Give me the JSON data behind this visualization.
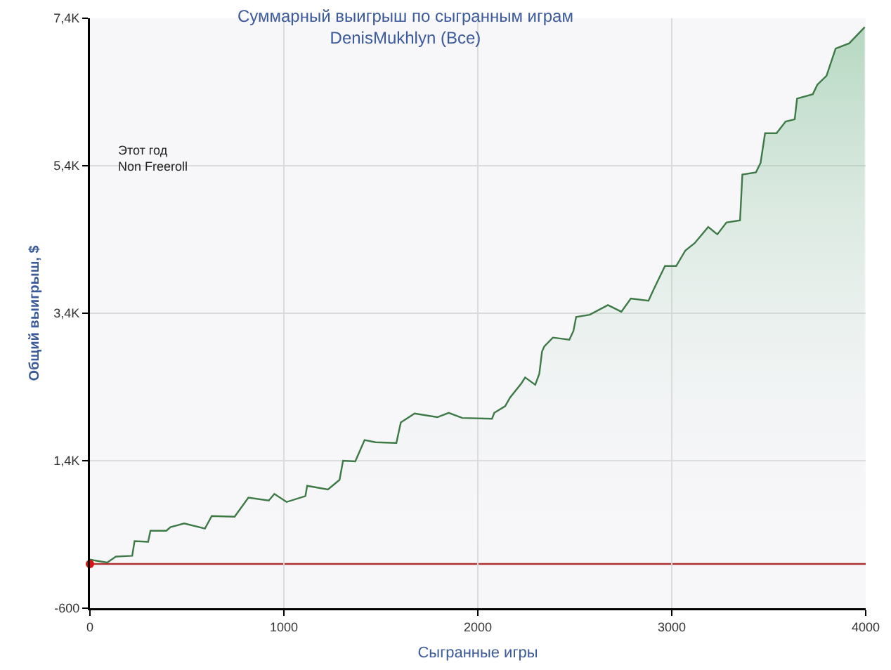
{
  "chart_data": {
    "type": "area",
    "title": "Суммарный выигрыш по сыгранным играм\nDenisMukhlyn (Все)",
    "xlabel": "Сыгранные игры",
    "ylabel": "Общий выигрыш, $",
    "annotations": [
      "Этот год\nNon Freeroll"
    ],
    "xlim": [
      0,
      4000
    ],
    "xticks": [
      0,
      1000,
      2000,
      3000,
      4000
    ],
    "ylim": [
      -600,
      7400
    ],
    "yticks": [
      -600,
      {
        "value": 1400,
        "label": "1,4K"
      },
      {
        "value": 3400,
        "label": "3,4K"
      },
      {
        "value": 5400,
        "label": "5,4K"
      },
      {
        "value": 7400,
        "label": "7,4K"
      }
    ],
    "grid": true,
    "ref_lines": [
      {
        "axis": "y",
        "value": 0,
        "color": "#b03030"
      }
    ],
    "series": [
      {
        "color": "#3d7a45",
        "x": [
          0,
          19,
          89,
          134,
          218,
          230,
          300,
          312,
          394,
          415,
          486,
          593,
          628,
          746,
          817,
          922,
          951,
          1014,
          1111,
          1120,
          1227,
          1287,
          1305,
          1368,
          1416,
          1473,
          1580,
          1603,
          1674,
          1791,
          1850,
          1920,
          2073,
          2085,
          2141,
          2167,
          2225,
          2244,
          2296,
          2317,
          2331,
          2343,
          2387,
          2472,
          2493,
          2507,
          2577,
          2671,
          2740,
          2789,
          2880,
          2906,
          2965,
          3023,
          3070,
          3118,
          3188,
          3235,
          3282,
          3352,
          3364,
          3434,
          3458,
          3481,
          3540,
          3587,
          3634,
          3646,
          3727,
          3751,
          3798,
          3845,
          3915,
          3995
        ],
        "values": [
          60,
          50,
          20,
          100,
          110,
          310,
          300,
          450,
          450,
          500,
          550,
          480,
          650,
          640,
          900,
          860,
          950,
          840,
          920,
          1060,
          1010,
          1140,
          1400,
          1390,
          1680,
          1650,
          1640,
          1920,
          2040,
          1990,
          2050,
          1980,
          1970,
          2050,
          2140,
          2260,
          2450,
          2530,
          2430,
          2580,
          2880,
          2950,
          3070,
          3040,
          3160,
          3350,
          3380,
          3510,
          3420,
          3600,
          3570,
          3720,
          4040,
          4040,
          4250,
          4350,
          4570,
          4470,
          4630,
          4660,
          5280,
          5310,
          5440,
          5840,
          5840,
          6000,
          6030,
          6310,
          6370,
          6500,
          6620,
          6990,
          7060,
          7280
        ]
      },
      {
        "type": "scatter",
        "color": "#dd1111",
        "marker": "circle",
        "x": [
          0
        ],
        "values": [
          0
        ]
      }
    ]
  }
}
